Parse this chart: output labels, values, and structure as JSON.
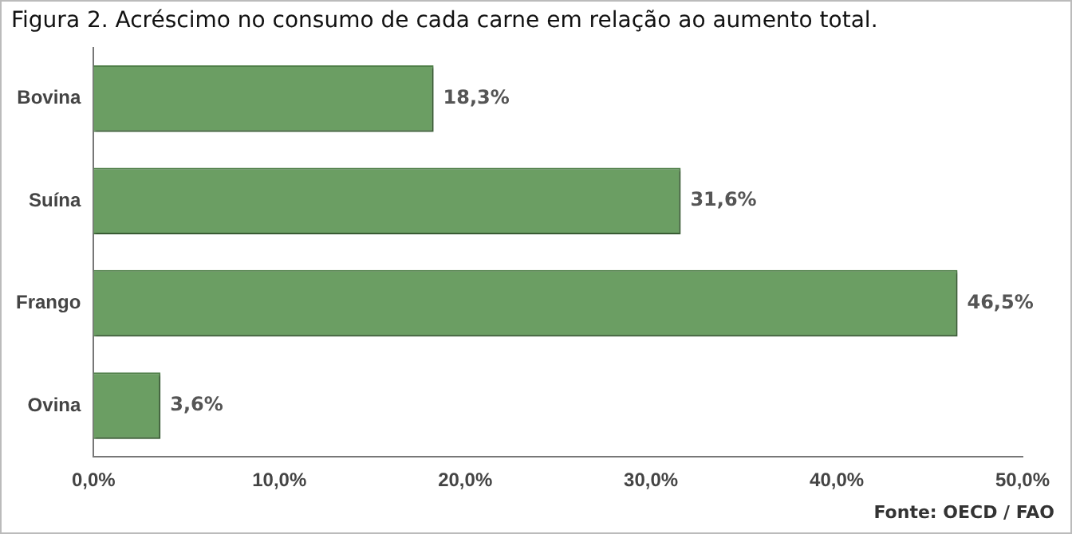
{
  "chart_data": {
    "type": "bar",
    "orientation": "horizontal",
    "title": "Figura 2. Acréscimo no consumo de cada carne em relação ao aumento total.",
    "categories": [
      "Bovina",
      "Suína",
      "Frango",
      "Ovina"
    ],
    "values": [
      18.3,
      31.6,
      46.5,
      3.6
    ],
    "value_labels": [
      "18,3%",
      "31,6%",
      "46,5%",
      "3,6%"
    ],
    "color": "#6b9e63",
    "xlim": [
      0,
      50
    ],
    "xticks": [
      {
        "value": 0,
        "label": "0,0%"
      },
      {
        "value": 10,
        "label": "10,0%"
      },
      {
        "value": 20,
        "label": "20,0%"
      },
      {
        "value": 30,
        "label": "30,0%"
      },
      {
        "value": 40,
        "label": "40,0%"
      },
      {
        "value": 50,
        "label": "50,0%"
      }
    ],
    "grid": false,
    "legend": false,
    "annotations": [
      "Fonte: OECD / FAO"
    ]
  }
}
